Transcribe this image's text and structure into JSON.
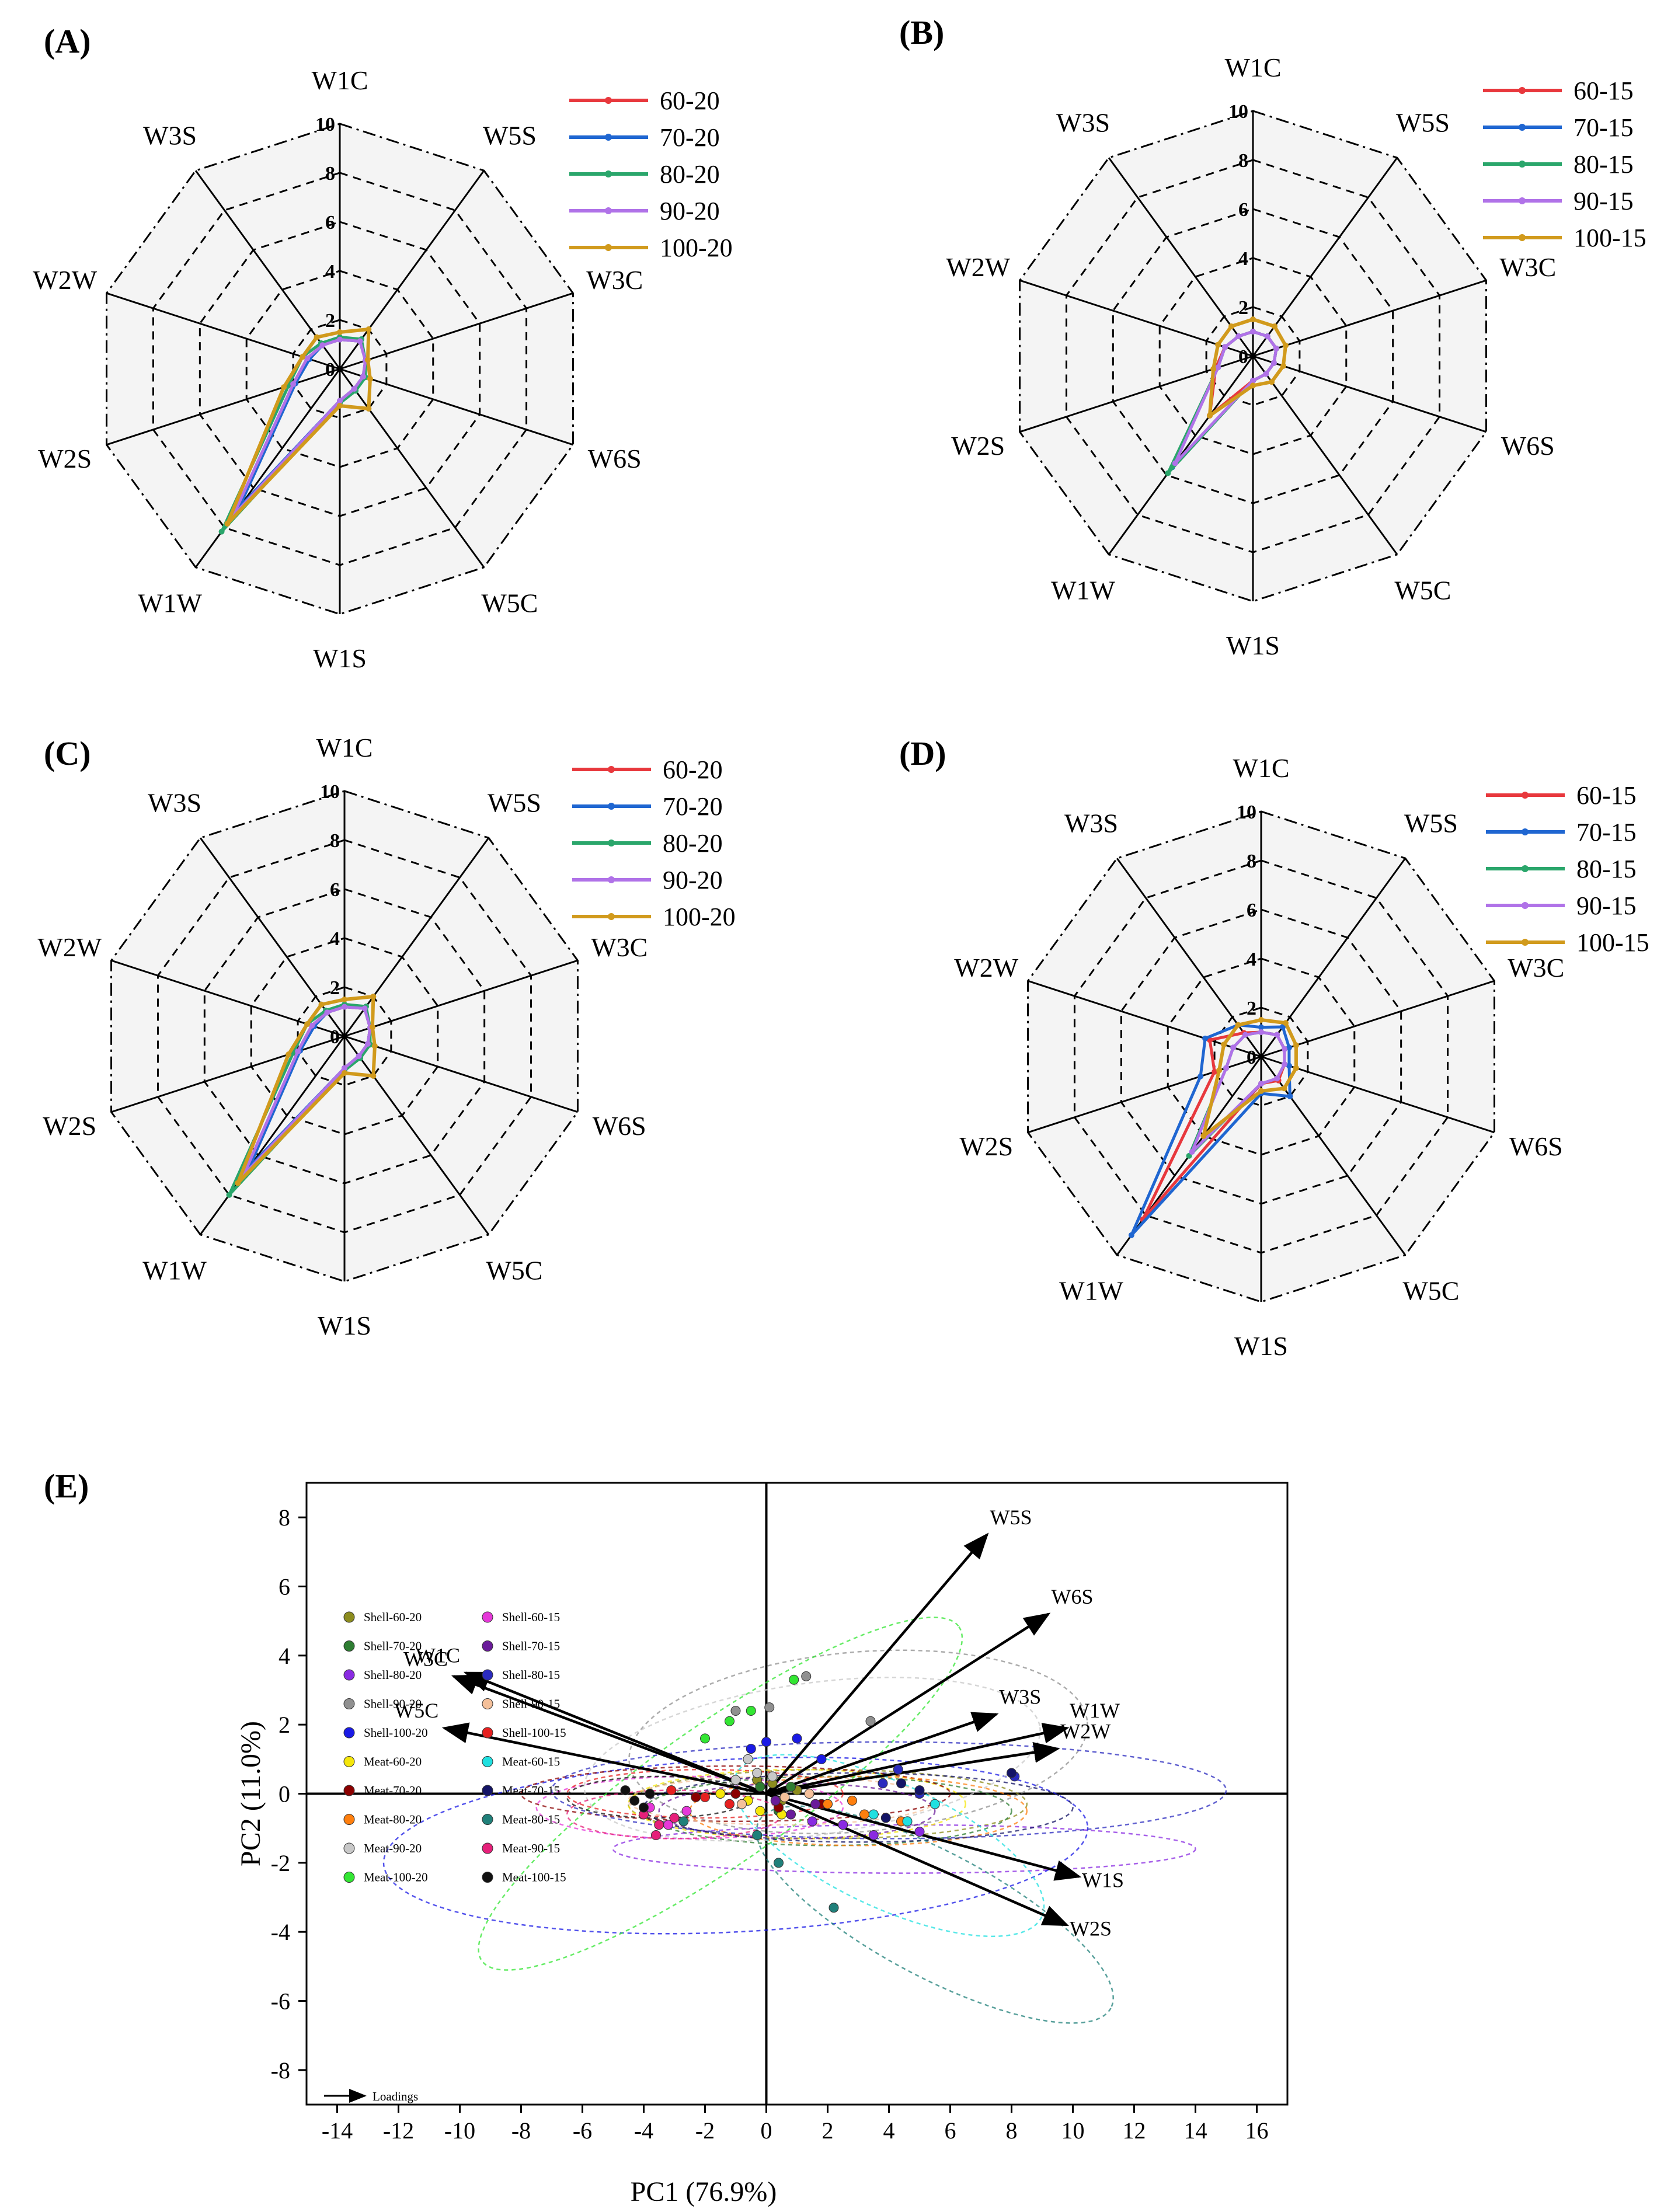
{
  "colors": {
    "s60": "#e8383d",
    "s70": "#1f66d1",
    "s80": "#2aa66b",
    "s90": "#b072e8",
    "s100": "#d19a1c",
    "grid": "#000000",
    "face": "#f4f4f4"
  },
  "chart_data": [
    {
      "id": "A",
      "type": "radar",
      "panel_label": "(A)",
      "axes": [
        "W1C",
        "W5S",
        "W3C",
        "W6S",
        "W5C",
        "W1S",
        "W1W",
        "W2S",
        "W2W",
        "W3S"
      ],
      "rmax": 10,
      "ticks": [
        "0",
        "2",
        "4",
        "6",
        "8",
        "10"
      ],
      "series": [
        {
          "name": "60-20",
          "values": [
            1.2,
            1.4,
            1.1,
            1.0,
            1.0,
            1.3,
            7.2,
            2.0,
            1.4,
            1.2
          ]
        },
        {
          "name": "70-20",
          "values": [
            1.2,
            1.4,
            1.1,
            1.0,
            1.0,
            1.3,
            7.0,
            1.9,
            1.3,
            1.2
          ]
        },
        {
          "name": "80-20",
          "values": [
            1.3,
            1.5,
            1.1,
            1.1,
            1.1,
            1.4,
            8.2,
            2.2,
            1.6,
            1.3
          ]
        },
        {
          "name": "90-20",
          "values": [
            1.2,
            1.4,
            1.1,
            1.0,
            1.0,
            1.3,
            7.4,
            2.0,
            1.4,
            1.2
          ]
        },
        {
          "name": "100-20",
          "values": [
            1.5,
            2.0,
            1.2,
            1.3,
            2.0,
            1.5,
            7.8,
            2.4,
            1.6,
            1.6
          ]
        }
      ]
    },
    {
      "id": "B",
      "type": "radar",
      "panel_label": "(B)",
      "axes": [
        "W1C",
        "W5S",
        "W3C",
        "W6S",
        "W5C",
        "W1S",
        "W1W",
        "W2S",
        "W2W",
        "W3S"
      ],
      "rmax": 10,
      "ticks": [
        "0",
        "2",
        "4",
        "6",
        "8",
        "10"
      ],
      "series": [
        {
          "name": "60-15",
          "values": [
            1.0,
            1.0,
            1.0,
            0.9,
            0.9,
            1.0,
            3.0,
            1.6,
            1.2,
            1.0
          ]
        },
        {
          "name": "70-15",
          "values": [
            1.0,
            1.0,
            1.0,
            0.9,
            0.9,
            1.0,
            5.6,
            1.5,
            1.2,
            1.0
          ]
        },
        {
          "name": "80-15",
          "values": [
            1.0,
            1.0,
            1.0,
            0.9,
            0.9,
            1.0,
            5.9,
            1.5,
            1.2,
            1.0
          ]
        },
        {
          "name": "90-15",
          "values": [
            1.0,
            1.0,
            1.0,
            0.9,
            0.9,
            1.0,
            5.4,
            1.5,
            1.2,
            1.0
          ]
        },
        {
          "name": "100-15",
          "values": [
            1.5,
            1.5,
            1.4,
            1.3,
            1.3,
            1.2,
            3.0,
            1.7,
            1.5,
            1.5
          ]
        }
      ]
    },
    {
      "id": "C",
      "type": "radar",
      "panel_label": "(C)",
      "axes": [
        "W1C",
        "W5S",
        "W3C",
        "W6S",
        "W5C",
        "W1S",
        "W1W",
        "W2S",
        "W2W",
        "W3S"
      ],
      "rmax": 10,
      "ticks": [
        "0",
        "2",
        "4",
        "6",
        "8",
        "10"
      ],
      "series": [
        {
          "name": "60-20",
          "values": [
            1.2,
            1.4,
            1.1,
            1.0,
            1.0,
            1.3,
            6.8,
            2.0,
            1.4,
            1.2
          ]
        },
        {
          "name": "70-20",
          "values": [
            1.2,
            1.4,
            1.1,
            1.0,
            1.0,
            1.3,
            6.6,
            1.9,
            1.3,
            1.2
          ]
        },
        {
          "name": "80-20",
          "values": [
            1.3,
            1.5,
            1.1,
            1.1,
            1.1,
            1.4,
            8.0,
            2.2,
            1.6,
            1.3
          ]
        },
        {
          "name": "90-20",
          "values": [
            1.2,
            1.4,
            1.1,
            1.0,
            1.0,
            1.3,
            7.0,
            2.0,
            1.4,
            1.2
          ]
        },
        {
          "name": "100-20",
          "values": [
            1.5,
            2.0,
            1.2,
            1.3,
            2.0,
            1.5,
            7.4,
            2.4,
            1.6,
            1.6
          ]
        }
      ]
    },
    {
      "id": "D",
      "type": "radar",
      "panel_label": "(D)",
      "axes": [
        "W1C",
        "W5S",
        "W3C",
        "W6S",
        "W5C",
        "W1S",
        "W1W",
        "W2S",
        "W2W",
        "W3S"
      ],
      "rmax": 10,
      "ticks": [
        "0",
        "2",
        "4",
        "6",
        "8",
        "10"
      ],
      "series": [
        {
          "name": "60-15",
          "values": [
            1.0,
            1.1,
            1.0,
            1.0,
            1.2,
            1.1,
            8.2,
            2.0,
            2.2,
            1.2
          ]
        },
        {
          "name": "70-15",
          "values": [
            1.2,
            1.5,
            1.2,
            1.2,
            2.0,
            1.5,
            9.0,
            2.6,
            2.4,
            1.6
          ]
        },
        {
          "name": "80-15",
          "values": [
            1.0,
            1.1,
            1.0,
            1.0,
            1.1,
            1.1,
            5.0,
            1.5,
            1.2,
            1.1
          ]
        },
        {
          "name": "90-15",
          "values": [
            1.0,
            1.1,
            1.0,
            1.0,
            1.1,
            1.1,
            4.8,
            1.5,
            1.2,
            1.1
          ]
        },
        {
          "name": "100-15",
          "values": [
            1.5,
            1.7,
            1.5,
            1.5,
            1.6,
            1.4,
            4.0,
            1.8,
            1.6,
            1.6
          ]
        }
      ]
    },
    {
      "id": "E",
      "type": "scatter",
      "panel_label": "(E)",
      "title": "",
      "xlabel": "PC1 (76.9%)",
      "ylabel": "PC2 (11.0%)",
      "xlim": [
        -15,
        17
      ],
      "ylim": [
        -9,
        9
      ],
      "xticks": [
        -14,
        -12,
        -10,
        -8,
        -6,
        -4,
        -2,
        0,
        2,
        4,
        6,
        8,
        10,
        12,
        14,
        16
      ],
      "yticks": [
        -8,
        -6,
        -4,
        -2,
        0,
        2,
        4,
        6,
        8
      ],
      "loadings_label": "Loadings",
      "loadings": [
        {
          "name": "W5S",
          "x": 7.2,
          "y": 7.5
        },
        {
          "name": "W6S",
          "x": 9.2,
          "y": 5.2
        },
        {
          "name": "W3S",
          "x": 7.5,
          "y": 2.3
        },
        {
          "name": "W1W",
          "x": 9.8,
          "y": 1.9
        },
        {
          "name": "W2W",
          "x": 9.5,
          "y": 1.3
        },
        {
          "name": "W1S",
          "x": 10.2,
          "y": -2.4
        },
        {
          "name": "W2S",
          "x": 9.8,
          "y": -3.8
        },
        {
          "name": "W1C",
          "x": -9.8,
          "y": 3.5
        },
        {
          "name": "W3C",
          "x": -10.2,
          "y": 3.4
        },
        {
          "name": "W5C",
          "x": -10.5,
          "y": 1.9
        }
      ],
      "groups": [
        {
          "name": "Shell-60-20",
          "color": "#8c8c1e",
          "points": [
            [
              0.2,
              0.3
            ],
            [
              0.5,
              -0.2
            ],
            [
              -0.3,
              0.4
            ],
            [
              1.0,
              0.1
            ]
          ],
          "ellipse": {
            "cx": 2.0,
            "cy": -0.3,
            "rx": 6.5,
            "ry": 1.0,
            "rot": 0
          }
        },
        {
          "name": "Shell-70-20",
          "color": "#2e7d32",
          "points": [
            [
              -0.2,
              0.2
            ],
            [
              0.4,
              -0.5
            ],
            [
              0.8,
              0.2
            ]
          ],
          "ellipse": {
            "cx": 2.0,
            "cy": -0.5,
            "rx": 6.0,
            "ry": 1.0,
            "rot": 0
          }
        },
        {
          "name": "Shell-80-20",
          "color": "#8a2be2",
          "points": [
            [
              1.5,
              -0.8
            ],
            [
              2.5,
              -0.9
            ],
            [
              3.5,
              -1.2
            ],
            [
              5.0,
              -1.1
            ]
          ],
          "ellipse": {
            "cx": 4.5,
            "cy": -1.6,
            "rx": 9.5,
            "ry": 0.7,
            "rot": 0
          }
        },
        {
          "name": "Shell-90-20",
          "color": "#909090",
          "points": [
            [
              1.3,
              3.4
            ],
            [
              3.4,
              2.1
            ],
            [
              0.1,
              2.5
            ],
            [
              -1.0,
              2.4
            ]
          ],
          "ellipse": {
            "cx": 3.0,
            "cy": 1.5,
            "rx": 7.5,
            "ry": 2.6,
            "rot": 5
          }
        },
        {
          "name": "Shell-100-20",
          "color": "#1a1ae6",
          "points": [
            [
              0.0,
              1.5
            ],
            [
              -0.5,
              1.3
            ],
            [
              1.0,
              1.6
            ],
            [
              1.8,
              1.0
            ]
          ],
          "ellipse": {
            "cx": -1.0,
            "cy": -1.5,
            "rx": 11.5,
            "ry": 2.5,
            "rot": 3
          }
        },
        {
          "name": "Meat-60-20",
          "color": "#f5e60a",
          "points": [
            [
              -0.6,
              -0.2
            ],
            [
              -1.5,
              0.0
            ],
            [
              -0.2,
              -0.5
            ],
            [
              0.5,
              -0.6
            ]
          ],
          "ellipse": {
            "cx": 1.0,
            "cy": -0.3,
            "rx": 5.5,
            "ry": 1.0,
            "rot": 0
          }
        },
        {
          "name": "Meat-70-20",
          "color": "#8b0000",
          "points": [
            [
              -2.3,
              -0.1
            ],
            [
              -1.0,
              0.0
            ],
            [
              0.4,
              -0.4
            ],
            [
              1.8,
              -0.3
            ]
          ],
          "ellipse": {
            "cx": -1.0,
            "cy": 0.0,
            "rx": 7.0,
            "ry": 0.8,
            "rot": 0
          }
        },
        {
          "name": "Meat-80-20",
          "color": "#ff7f0e",
          "points": [
            [
              2.0,
              -0.3
            ],
            [
              3.2,
              -0.6
            ],
            [
              4.4,
              -0.8
            ],
            [
              2.8,
              -0.2
            ]
          ],
          "ellipse": {
            "cx": 3.0,
            "cy": -0.5,
            "rx": 5.5,
            "ry": 1.0,
            "rot": 0
          }
        },
        {
          "name": "Meat-90-20",
          "color": "#c8c8c8",
          "points": [
            [
              -0.3,
              0.6
            ],
            [
              -1.0,
              0.4
            ],
            [
              0.2,
              0.5
            ],
            [
              -0.6,
              1.0
            ]
          ],
          "ellipse": {
            "cx": 1.5,
            "cy": 1.0,
            "rx": 7.5,
            "ry": 2.2,
            "rot": 8
          }
        },
        {
          "name": "Meat-100-20",
          "color": "#33e633",
          "points": [
            [
              -1.2,
              2.1
            ],
            [
              -0.5,
              2.4
            ],
            [
              -2.0,
              1.6
            ],
            [
              0.9,
              3.3
            ]
          ],
          "ellipse": {
            "cx": -1.5,
            "cy": 0.0,
            "rx": 9.5,
            "ry": 2.0,
            "rot": 35
          }
        },
        {
          "name": "Shell-60-15",
          "color": "#e638d9",
          "points": [
            [
              -3.8,
              -0.4
            ],
            [
              -3.2,
              -0.9
            ],
            [
              -2.6,
              -0.5
            ]
          ],
          "ellipse": {
            "cx": -2.5,
            "cy": -0.4,
            "rx": 5.0,
            "ry": 0.9,
            "rot": 0
          }
        },
        {
          "name": "Shell-70-15",
          "color": "#6a1b9a",
          "points": [
            [
              0.8,
              -0.6
            ],
            [
              1.6,
              -0.3
            ],
            [
              0.3,
              -0.2
            ]
          ],
          "ellipse": {
            "cx": 1.0,
            "cy": -0.5,
            "rx": 4.5,
            "ry": 0.8,
            "rot": 0
          }
        },
        {
          "name": "Shell-80-15",
          "color": "#2b2bbf",
          "points": [
            [
              4.3,
              0.7
            ],
            [
              3.8,
              0.3
            ],
            [
              5.0,
              0.0
            ],
            [
              8.1,
              0.5
            ]
          ],
          "ellipse": {
            "cx": 4.0,
            "cy": 0.1,
            "rx": 11.0,
            "ry": 1.4,
            "rot": 0
          }
        },
        {
          "name": "Shell-90-15",
          "color": "#f4c09a",
          "points": [
            [
              0.6,
              -0.1
            ],
            [
              -0.8,
              -0.3
            ],
            [
              1.4,
              0.0
            ]
          ],
          "ellipse": {
            "cx": 0.5,
            "cy": -0.2,
            "rx": 5.0,
            "ry": 0.7,
            "rot": 0
          }
        },
        {
          "name": "Shell-100-15",
          "color": "#e62020",
          "points": [
            [
              -3.1,
              0.1
            ],
            [
              -2.0,
              -0.1
            ],
            [
              -1.2,
              -0.3
            ]
          ],
          "ellipse": {
            "cx": -2.0,
            "cy": 0.0,
            "rx": 4.5,
            "ry": 0.7,
            "rot": 0
          }
        },
        {
          "name": "Meat-60-15",
          "color": "#20e0e0",
          "points": [
            [
              5.5,
              -0.3
            ],
            [
              4.6,
              -0.8
            ],
            [
              3.5,
              -0.6
            ]
          ],
          "ellipse": {
            "cx": 4.0,
            "cy": -1.5,
            "rx": 5.5,
            "ry": 1.8,
            "rot": -25
          }
        },
        {
          "name": "Meat-70-15",
          "color": "#141466",
          "points": [
            [
              3.9,
              -0.7
            ],
            [
              4.4,
              0.3
            ],
            [
              5.0,
              0.1
            ],
            [
              8.0,
              0.6
            ]
          ],
          "ellipse": {
            "cx": 3.0,
            "cy": -0.4,
            "rx": 7.0,
            "ry": 1.0,
            "rot": 0
          }
        },
        {
          "name": "Meat-80-15",
          "color": "#20807a",
          "points": [
            [
              2.2,
              -3.3
            ],
            [
              0.4,
              -2.0
            ],
            [
              -0.3,
              -1.2
            ],
            [
              -2.7,
              -0.8
            ]
          ],
          "ellipse": {
            "cx": 5.5,
            "cy": -3.5,
            "rx": 6.5,
            "ry": 1.8,
            "rot": -28
          }
        },
        {
          "name": "Meat-90-15",
          "color": "#e6207a",
          "points": [
            [
              -4.0,
              -0.6
            ],
            [
              -3.5,
              -0.9
            ],
            [
              -3.0,
              -0.7
            ],
            [
              -3.6,
              -1.2
            ]
          ],
          "ellipse": {
            "cx": -3.0,
            "cy": -0.6,
            "rx": 3.5,
            "ry": 0.7,
            "rot": 0
          }
        },
        {
          "name": "Meat-100-15",
          "color": "#111111",
          "points": [
            [
              -4.6,
              0.1
            ],
            [
              -4.3,
              -0.2
            ],
            [
              -3.8,
              0.0
            ],
            [
              -4.0,
              -0.4
            ]
          ],
          "ellipse": {
            "cx": -3.5,
            "cy": -0.1,
            "rx": 3.0,
            "ry": 0.6,
            "rot": 0
          }
        }
      ]
    }
  ]
}
